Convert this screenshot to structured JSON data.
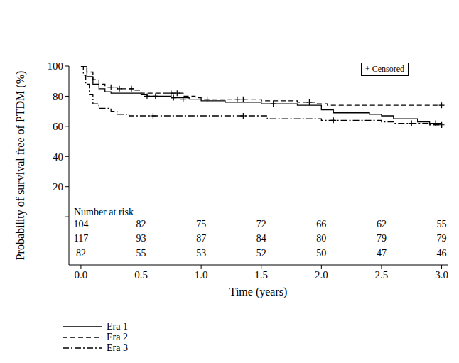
{
  "chart_data": {
    "type": "line",
    "y_label": "Probability of survival free of PTDM (%)",
    "x_label": "Time (years)",
    "xlim": [
      -0.1,
      3.05
    ],
    "xticks": [
      {
        "value": 0,
        "label": "0.0"
      },
      {
        "value": 0.5,
        "label": "0.5"
      },
      {
        "value": 1,
        "label": "1.0"
      },
      {
        "value": 1.5,
        "label": "1.5"
      },
      {
        "value": 2,
        "label": "2.0"
      },
      {
        "value": 2.5,
        "label": "2.5"
      },
      {
        "value": 3,
        "label": "3.0"
      }
    ],
    "ylim": [
      -32,
      100
    ],
    "yticks": [
      0,
      20,
      40,
      60,
      80,
      100
    ],
    "legend": "bottom",
    "marker": "plus",
    "censored_label": "+ Censored",
    "number_at_risk_label": "Number at risk",
    "series": [
      {
        "name": "Era 1",
        "color": "#000000",
        "line_style": "solid",
        "x": [
          0,
          0.05,
          0.1,
          0.15,
          0.2,
          0.25,
          0.5,
          0.55,
          0.75,
          0.9,
          1.0,
          1.2,
          1.5,
          1.8,
          2.0,
          2.1,
          2.4,
          2.5,
          2.6,
          2.8,
          2.9,
          3.0
        ],
        "values": [
          100,
          93,
          88,
          85,
          83,
          82,
          81,
          80,
          79,
          78,
          77,
          76,
          75,
          74,
          71,
          69,
          68,
          67,
          65,
          63,
          62,
          59
        ],
        "censored": {
          "x": [
            0.55,
            0.62,
            0.77,
            0.85,
            1.6,
            2.95
          ],
          "y": [
            80,
            80,
            79,
            78,
            75,
            62
          ]
        },
        "at_risk": [
          104,
          82,
          75,
          72,
          66,
          62,
          55
        ]
      },
      {
        "name": "Era 2",
        "color": "#000000",
        "line_style": "dashed",
        "x": [
          0,
          0.05,
          0.1,
          0.15,
          0.2,
          0.3,
          0.45,
          0.5,
          0.85,
          0.95,
          1.0,
          1.5,
          1.8,
          1.95,
          2.05,
          3.0
        ],
        "values": [
          100,
          96,
          91,
          88,
          86,
          85,
          84,
          82,
          80,
          79,
          78,
          77,
          76,
          75,
          74,
          74
        ],
        "censored": {
          "x": [
            0.25,
            0.32,
            0.42,
            0.75,
            0.8,
            1.05,
            1.3,
            1.35,
            1.9,
            3.0
          ],
          "y": [
            86,
            85,
            85,
            82,
            82,
            78,
            78,
            78,
            76,
            74
          ]
        },
        "at_risk": [
          117,
          93,
          87,
          84,
          80,
          79,
          79
        ]
      },
      {
        "name": "Era 3",
        "color": "#000000",
        "line_style": "dashdot",
        "x": [
          0,
          0.02,
          0.04,
          0.07,
          0.1,
          0.15,
          0.25,
          0.3,
          0.4,
          1.55,
          2.0,
          2.5,
          2.6,
          2.9,
          3.0
        ],
        "values": [
          100,
          94,
          88,
          81,
          75,
          72,
          70,
          68,
          67,
          65,
          64,
          63,
          62,
          61,
          61
        ],
        "censored": {
          "x": [
            0.6,
            1.35,
            2.1,
            2.75,
            3.0
          ],
          "y": [
            67,
            67,
            64,
            62,
            61
          ]
        },
        "at_risk": [
          82,
          55,
          53,
          52,
          50,
          47,
          46
        ]
      }
    ]
  }
}
